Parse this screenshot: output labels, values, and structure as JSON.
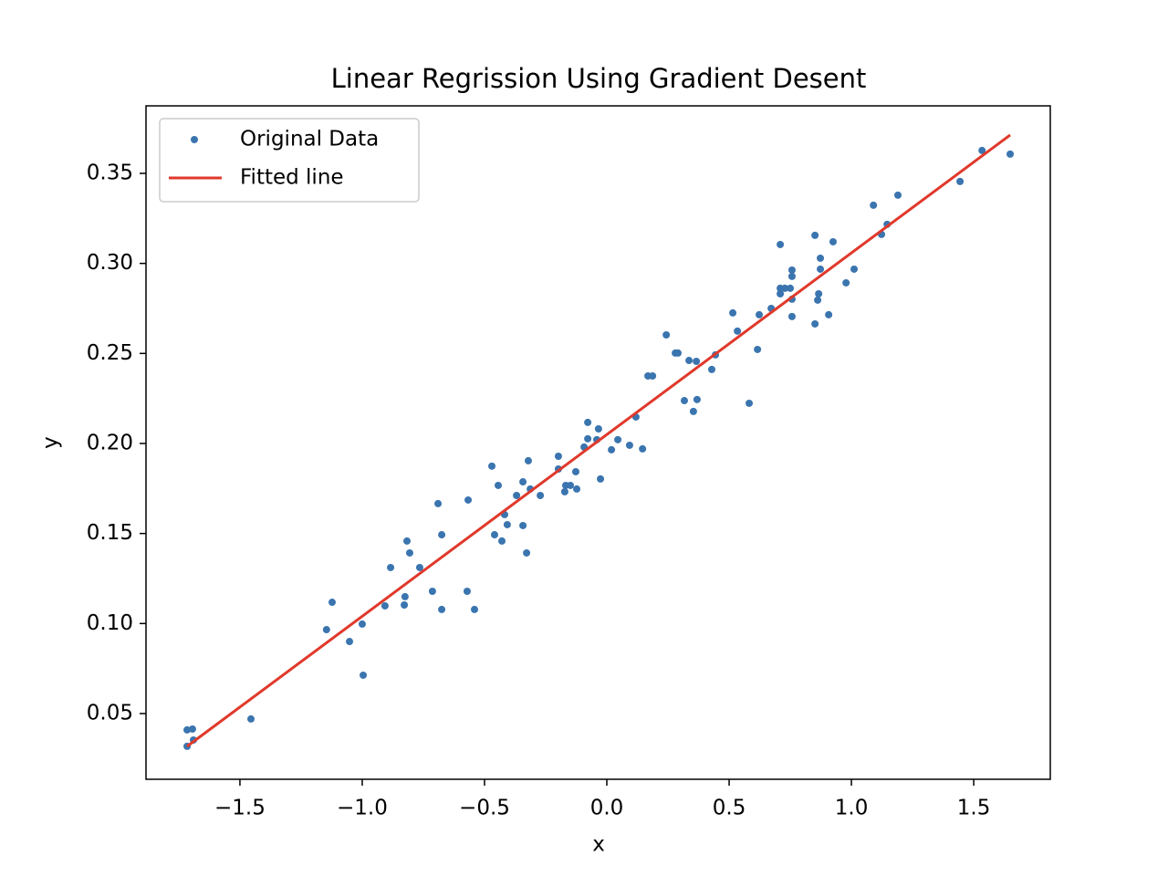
{
  "chart_data": {
    "type": "scatter",
    "title": "Linear Regrission Using Gradient Desent",
    "xlabel": "x",
    "ylabel": "y",
    "xlim": [
      -1.884,
      1.813
    ],
    "ylim": [
      0.0135,
      0.3875
    ],
    "xticks": [
      {
        "value": -1.5,
        "label": "−1.5"
      },
      {
        "value": -1.0,
        "label": "−1.0"
      },
      {
        "value": -0.5,
        "label": "−0.5"
      },
      {
        "value": 0,
        "label": "0.0"
      },
      0.5,
      {
        "value": 1,
        "label": "1.0"
      },
      1.5
    ],
    "yticks": [
      0.05,
      {
        "value": 0.1,
        "label": "0.10"
      },
      0.15,
      {
        "value": 0.2,
        "label": "0.20"
      },
      0.25,
      {
        "value": 0.3,
        "label": "0.30"
      },
      0.35
    ],
    "legend": "upper left",
    "series": [
      {
        "name": "Original Data",
        "type": "scatter",
        "color": "#3b75af",
        "x": [
          -1.716,
          -1.694,
          -1.716,
          -1.69,
          -1.455,
          -1.146,
          -1.123,
          -1.052,
          -1.0,
          -0.996,
          -0.907,
          -0.884,
          -0.828,
          -0.825,
          -0.817,
          -0.806,
          -0.765,
          -0.713,
          -0.675,
          -0.69,
          -0.675,
          -0.571,
          -0.567,
          -0.541,
          -0.47,
          -0.459,
          -0.444,
          -0.429,
          -0.418,
          -0.407,
          -0.369,
          -0.343,
          -0.343,
          -0.328,
          -0.321,
          -0.313,
          -0.272,
          -0.198,
          -0.198,
          -0.172,
          -0.168,
          -0.149,
          -0.127,
          -0.123,
          -0.093,
          -0.078,
          -0.078,
          -0.041,
          -0.034,
          -0.026,
          0.019,
          0.045,
          0.093,
          0.119,
          0.146,
          0.168,
          0.187,
          0.243,
          0.28,
          0.291,
          0.317,
          0.336,
          0.354,
          0.366,
          0.369,
          0.429,
          0.444,
          0.515,
          0.534,
          0.582,
          0.616,
          0.623,
          0.672,
          0.709,
          0.709,
          0.709,
          0.728,
          0.75,
          0.757,
          0.757,
          0.757,
          0.757,
          0.851,
          0.851,
          0.862,
          0.866,
          0.873,
          0.873,
          0.907,
          0.925,
          0.978,
          1.011,
          1.09,
          1.123,
          1.146,
          1.19,
          1.444,
          1.534,
          1.649
        ],
        "y": [
          0.0409,
          0.0414,
          0.0318,
          0.0353,
          0.047,
          0.0966,
          0.1118,
          0.09,
          0.0997,
          0.0713,
          0.1098,
          0.1311,
          0.1103,
          0.1149,
          0.1458,
          0.1392,
          0.1311,
          0.1179,
          0.1078,
          0.1666,
          0.1493,
          0.1179,
          0.1686,
          0.1078,
          0.1874,
          0.1493,
          0.1767,
          0.1458,
          0.1605,
          0.1549,
          0.1711,
          0.1787,
          0.1544,
          0.1392,
          0.1904,
          0.1747,
          0.1711,
          0.1929,
          0.1858,
          0.1732,
          0.1767,
          0.1767,
          0.1843,
          0.1747,
          0.198,
          0.2117,
          0.2026,
          0.2021,
          0.2081,
          0.1803,
          0.1965,
          0.2021,
          0.199,
          0.2147,
          0.197,
          0.2375,
          0.2375,
          0.2603,
          0.2502,
          0.2502,
          0.2238,
          0.2461,
          0.2178,
          0.2456,
          0.2244,
          0.2411,
          0.2492,
          0.2725,
          0.2624,
          0.2223,
          0.2522,
          0.2715,
          0.275,
          0.3105,
          0.2862,
          0.2831,
          0.2862,
          0.2862,
          0.2928,
          0.2801,
          0.2705,
          0.2963,
          0.3156,
          0.2664,
          0.2796,
          0.2831,
          0.3029,
          0.2968,
          0.2715,
          0.312,
          0.2892,
          0.2968,
          0.3323,
          0.3161,
          0.3217,
          0.3379,
          0.3455,
          0.3627,
          0.3607
        ]
      },
      {
        "name": "Fitted line",
        "type": "line",
        "color": "#e0392b",
        "x": [
          -1.716,
          1.649
        ],
        "y": [
          0.0318,
          0.3713
        ]
      }
    ]
  }
}
